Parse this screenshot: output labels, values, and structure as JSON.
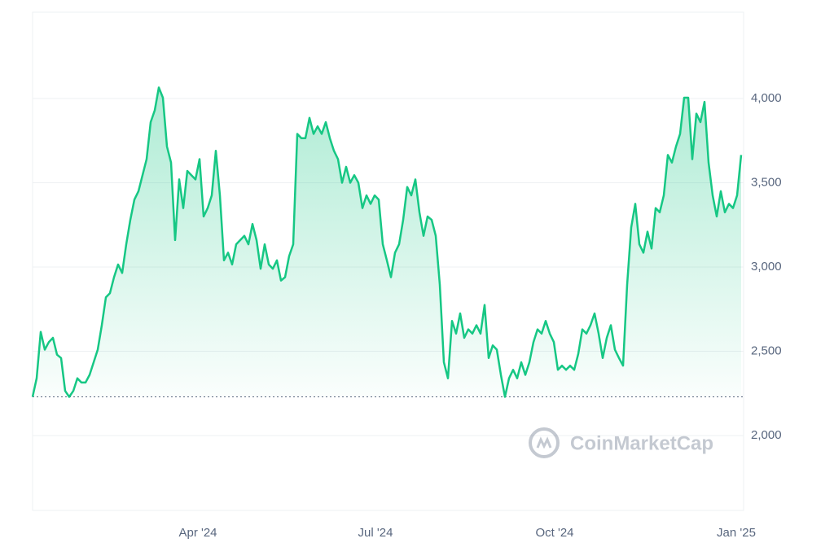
{
  "chart_data": {
    "type": "area",
    "watermark": "CoinMarketCap",
    "series": [
      {
        "color": "#16c784",
        "values": [
          2230,
          2340,
          2615,
          2510,
          2555,
          2580,
          2480,
          2460,
          2265,
          2230,
          2265,
          2340,
          2315,
          2315,
          2360,
          2435,
          2510,
          2655,
          2820,
          2845,
          2940,
          3015,
          2965,
          3135,
          3280,
          3400,
          3450,
          3545,
          3640,
          3860,
          3930,
          4065,
          4005,
          3715,
          3620,
          3160,
          3520,
          3350,
          3570,
          3545,
          3520,
          3640,
          3300,
          3350,
          3425,
          3690,
          3425,
          3040,
          3085,
          3015,
          3135,
          3160,
          3185,
          3135,
          3255,
          3160,
          2990,
          3135,
          3015,
          2990,
          3040,
          2920,
          2940,
          3065,
          3135,
          3790,
          3765,
          3765,
          3885,
          3790,
          3835,
          3790,
          3860,
          3765,
          3690,
          3640,
          3500,
          3595,
          3500,
          3545,
          3500,
          3350,
          3425,
          3375,
          3425,
          3400,
          3135,
          3040,
          2940,
          3085,
          3135,
          3280,
          3475,
          3425,
          3520,
          3325,
          3185,
          3300,
          3280,
          3185,
          2895,
          2435,
          2340,
          2680,
          2605,
          2725,
          2580,
          2630,
          2605,
          2655,
          2605,
          2775,
          2460,
          2535,
          2510,
          2360,
          2230,
          2340,
          2390,
          2340,
          2435,
          2360,
          2435,
          2555,
          2630,
          2605,
          2680,
          2605,
          2555,
          2390,
          2415,
          2390,
          2415,
          2390,
          2485,
          2630,
          2605,
          2655,
          2725,
          2605,
          2460,
          2580,
          2655,
          2510,
          2460,
          2415,
          2895,
          3235,
          3375,
          3135,
          3085,
          3210,
          3110,
          3350,
          3325,
          3425,
          3665,
          3620,
          3715,
          3790,
          4005,
          4005,
          3640,
          3910,
          3860,
          3980,
          3620,
          3425,
          3300,
          3450,
          3325,
          3375,
          3350,
          3425,
          3665
        ]
      }
    ],
    "xlim": [
      0,
      174
    ],
    "xticks": [
      {
        "value": 40.6,
        "label": "Apr '24"
      },
      {
        "value": 84.2,
        "label": "Jul '24"
      },
      {
        "value": 128.2,
        "label": "Oct '24"
      },
      {
        "value": 172.8,
        "label": "Jan '25"
      }
    ],
    "ylim": [
      1556,
      4512
    ],
    "yticks": [
      {
        "value": 2000,
        "label": "2,000"
      },
      {
        "value": 2500,
        "label": "2,500"
      },
      {
        "value": 3000,
        "label": "3,000"
      },
      {
        "value": 3500,
        "label": "3,500"
      },
      {
        "value": 4000,
        "label": "4,000"
      }
    ],
    "grid": true
  }
}
